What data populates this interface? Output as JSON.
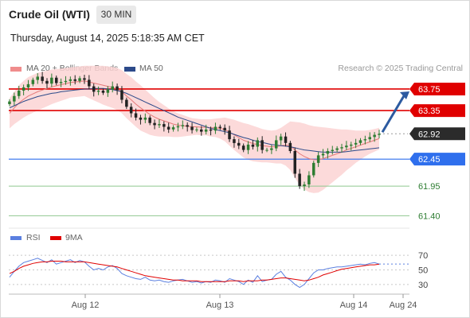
{
  "header": {
    "title": "Crude Oil (WTI)",
    "timeframe": "30 MIN"
  },
  "timestamp": "Thursday, August 14, 2025 5:18:35 AM CET",
  "legend": {
    "bollinger": "MA 20 + Bollinger Bands",
    "ma50": "MA 50",
    "source": "Research © 2025 Trading Central",
    "rsi": "RSI",
    "rsi_ma": "9MA"
  },
  "colors": {
    "bollinger_band": "#fbd3d3",
    "ma20": "#e57a7a",
    "ma50": "#2c4a8a",
    "candle_up": "#2e7d32",
    "candle_down": "#222222",
    "resistance": "#e00000",
    "pivot": "#2f6fed",
    "support": "#8fc78f",
    "arrow": "#2c5aa0",
    "rsi": "#5a7fe0",
    "rsi_ma": "#e00000"
  },
  "chart_data": [
    {
      "type": "candlestick",
      "title": "Crude Oil (WTI)",
      "timeframe": "30 MIN",
      "x_ticks": [
        "Aug 12",
        "Aug 13",
        "Aug 14",
        "Aug 24"
      ],
      "ylim": [
        61.2,
        64.0
      ],
      "levels": [
        {
          "label": "63.75",
          "value": 63.75,
          "kind": "resistance"
        },
        {
          "label": "63.35",
          "value": 63.35,
          "kind": "resistance"
        },
        {
          "label": "62.92",
          "value": 62.92,
          "kind": "last"
        },
        {
          "label": "62.45",
          "value": 62.45,
          "kind": "pivot"
        },
        {
          "label": "61.95",
          "value": 61.95,
          "kind": "support"
        },
        {
          "label": "61.40",
          "value": 61.4,
          "kind": "support"
        }
      ],
      "projection": {
        "from": 62.92,
        "to": 63.75
      },
      "close": [
        63.52,
        63.62,
        63.72,
        63.78,
        63.84,
        63.92,
        63.98,
        63.9,
        63.85,
        63.96,
        63.86,
        63.88,
        63.9,
        63.93,
        63.9,
        63.95,
        63.92,
        63.8,
        63.7,
        63.72,
        63.68,
        63.74,
        63.8,
        63.73,
        63.55,
        63.42,
        63.3,
        63.22,
        63.18,
        63.22,
        63.12,
        63.08,
        63.1,
        63.05,
        63.0,
        63.04,
        63.06,
        63.08,
        63.05,
        62.99,
        63.0,
        62.96,
        63.0,
        62.98,
        63.05,
        63.03,
        62.98,
        62.82,
        62.75,
        62.7,
        62.62,
        62.72,
        62.68,
        62.8,
        62.62,
        62.62,
        62.65,
        62.8,
        62.87,
        62.75,
        62.6,
        62.18,
        61.95,
        61.98,
        62.15,
        62.38,
        62.52,
        62.55,
        62.6,
        62.62,
        62.65,
        62.67,
        62.7,
        62.72,
        62.75,
        62.8,
        62.82,
        62.86,
        62.9,
        62.92
      ],
      "ma20": [
        63.3,
        63.4,
        63.49,
        63.56,
        63.62,
        63.66,
        63.7,
        63.73,
        63.76,
        63.79,
        63.81,
        63.83,
        63.85,
        63.87,
        63.88,
        63.89,
        63.9,
        63.88,
        63.86,
        63.84,
        63.82,
        63.8,
        63.78,
        63.75,
        63.7,
        63.62,
        63.55,
        63.47,
        63.4,
        63.34,
        63.28,
        63.23,
        63.19,
        63.16,
        63.13,
        63.1,
        63.08,
        63.07,
        63.06,
        63.05,
        63.05,
        63.04,
        63.04,
        63.03,
        63.03,
        63.02,
        63.0,
        62.95,
        62.9,
        62.85,
        62.8,
        62.77,
        62.74,
        62.72,
        62.7,
        62.69,
        62.68,
        62.68,
        62.7,
        62.71,
        62.7,
        62.62,
        62.55,
        62.5,
        62.46,
        62.44,
        62.44,
        62.46,
        62.49,
        62.52,
        62.55,
        62.58,
        62.62,
        62.65,
        62.68,
        62.71,
        62.74,
        62.77,
        62.8,
        62.83
      ],
      "bb_width": [
        0.28,
        0.3,
        0.33,
        0.34,
        0.35,
        0.35,
        0.35,
        0.34,
        0.33,
        0.32,
        0.31,
        0.3,
        0.29,
        0.28,
        0.28,
        0.28,
        0.28,
        0.3,
        0.32,
        0.34,
        0.36,
        0.37,
        0.38,
        0.39,
        0.4,
        0.41,
        0.42,
        0.42,
        0.42,
        0.4,
        0.38,
        0.35,
        0.32,
        0.29,
        0.26,
        0.24,
        0.22,
        0.2,
        0.18,
        0.16,
        0.15,
        0.15,
        0.15,
        0.16,
        0.17,
        0.19,
        0.22,
        0.25,
        0.28,
        0.3,
        0.32,
        0.33,
        0.33,
        0.32,
        0.31,
        0.3,
        0.3,
        0.31,
        0.33,
        0.38,
        0.45,
        0.52,
        0.58,
        0.61,
        0.62,
        0.62,
        0.61,
        0.58,
        0.54,
        0.5,
        0.46,
        0.42,
        0.38,
        0.34,
        0.3,
        0.27,
        0.24,
        0.22,
        0.21,
        0.2
      ],
      "ma50": [
        63.4,
        63.44,
        63.48,
        63.52,
        63.55,
        63.58,
        63.61,
        63.63,
        63.65,
        63.67,
        63.68,
        63.7,
        63.71,
        63.72,
        63.73,
        63.74,
        63.75,
        63.75,
        63.76,
        63.76,
        63.76,
        63.75,
        63.74,
        63.72,
        63.7,
        63.67,
        63.63,
        63.59,
        63.55,
        63.51,
        63.47,
        63.43,
        63.39,
        63.35,
        63.31,
        63.27,
        63.23,
        63.2,
        63.17,
        63.14,
        63.11,
        63.08,
        63.05,
        63.02,
        63.0,
        62.98,
        62.96,
        62.94,
        62.91,
        62.88,
        62.85,
        62.83,
        62.8,
        62.78,
        62.76,
        62.74,
        62.72,
        62.71,
        62.7,
        62.69,
        62.68,
        62.66,
        62.64,
        62.62,
        62.61,
        62.6,
        62.59,
        62.58,
        62.58,
        62.58,
        62.58,
        62.58,
        62.59,
        62.6,
        62.61,
        62.62,
        62.63,
        62.64,
        62.65,
        62.66
      ]
    },
    {
      "type": "line",
      "title": "RSI",
      "ylim": [
        20,
        80
      ],
      "y_ticks": [
        70,
        50,
        30
      ],
      "series": [
        {
          "name": "RSI",
          "values": [
            40,
            48,
            55,
            60,
            62,
            64,
            66,
            63,
            60,
            64,
            58,
            60,
            62,
            64,
            60,
            63,
            61,
            55,
            50,
            52,
            50,
            54,
            56,
            52,
            45,
            42,
            40,
            38,
            37,
            40,
            36,
            35,
            36,
            34,
            33,
            35,
            36,
            37,
            35,
            33,
            34,
            32,
            34,
            33,
            36,
            35,
            33,
            38,
            36,
            34,
            30,
            36,
            33,
            42,
            34,
            36,
            37,
            44,
            48,
            40,
            36,
            30,
            26,
            30,
            38,
            46,
            50,
            50,
            52,
            53,
            54,
            54,
            55,
            56,
            57,
            58,
            57,
            59,
            60,
            58
          ]
        },
        {
          "name": "9MA",
          "values": [
            45,
            48,
            52,
            55,
            57,
            59,
            60,
            61,
            61,
            62,
            62,
            62,
            61,
            61,
            61,
            61,
            61,
            60,
            59,
            58,
            57,
            56,
            55,
            54,
            52,
            50,
            48,
            46,
            44,
            42,
            41,
            40,
            39,
            38,
            37,
            36,
            36,
            35,
            35,
            35,
            35,
            34,
            34,
            34,
            34,
            34,
            34,
            35,
            35,
            35,
            34,
            35,
            35,
            35,
            36,
            36,
            37,
            38,
            39,
            39,
            38,
            37,
            36,
            35,
            36,
            38,
            40,
            43,
            45,
            47,
            49,
            51,
            52,
            53,
            54,
            55,
            56,
            57,
            57,
            58
          ]
        }
      ]
    }
  ]
}
